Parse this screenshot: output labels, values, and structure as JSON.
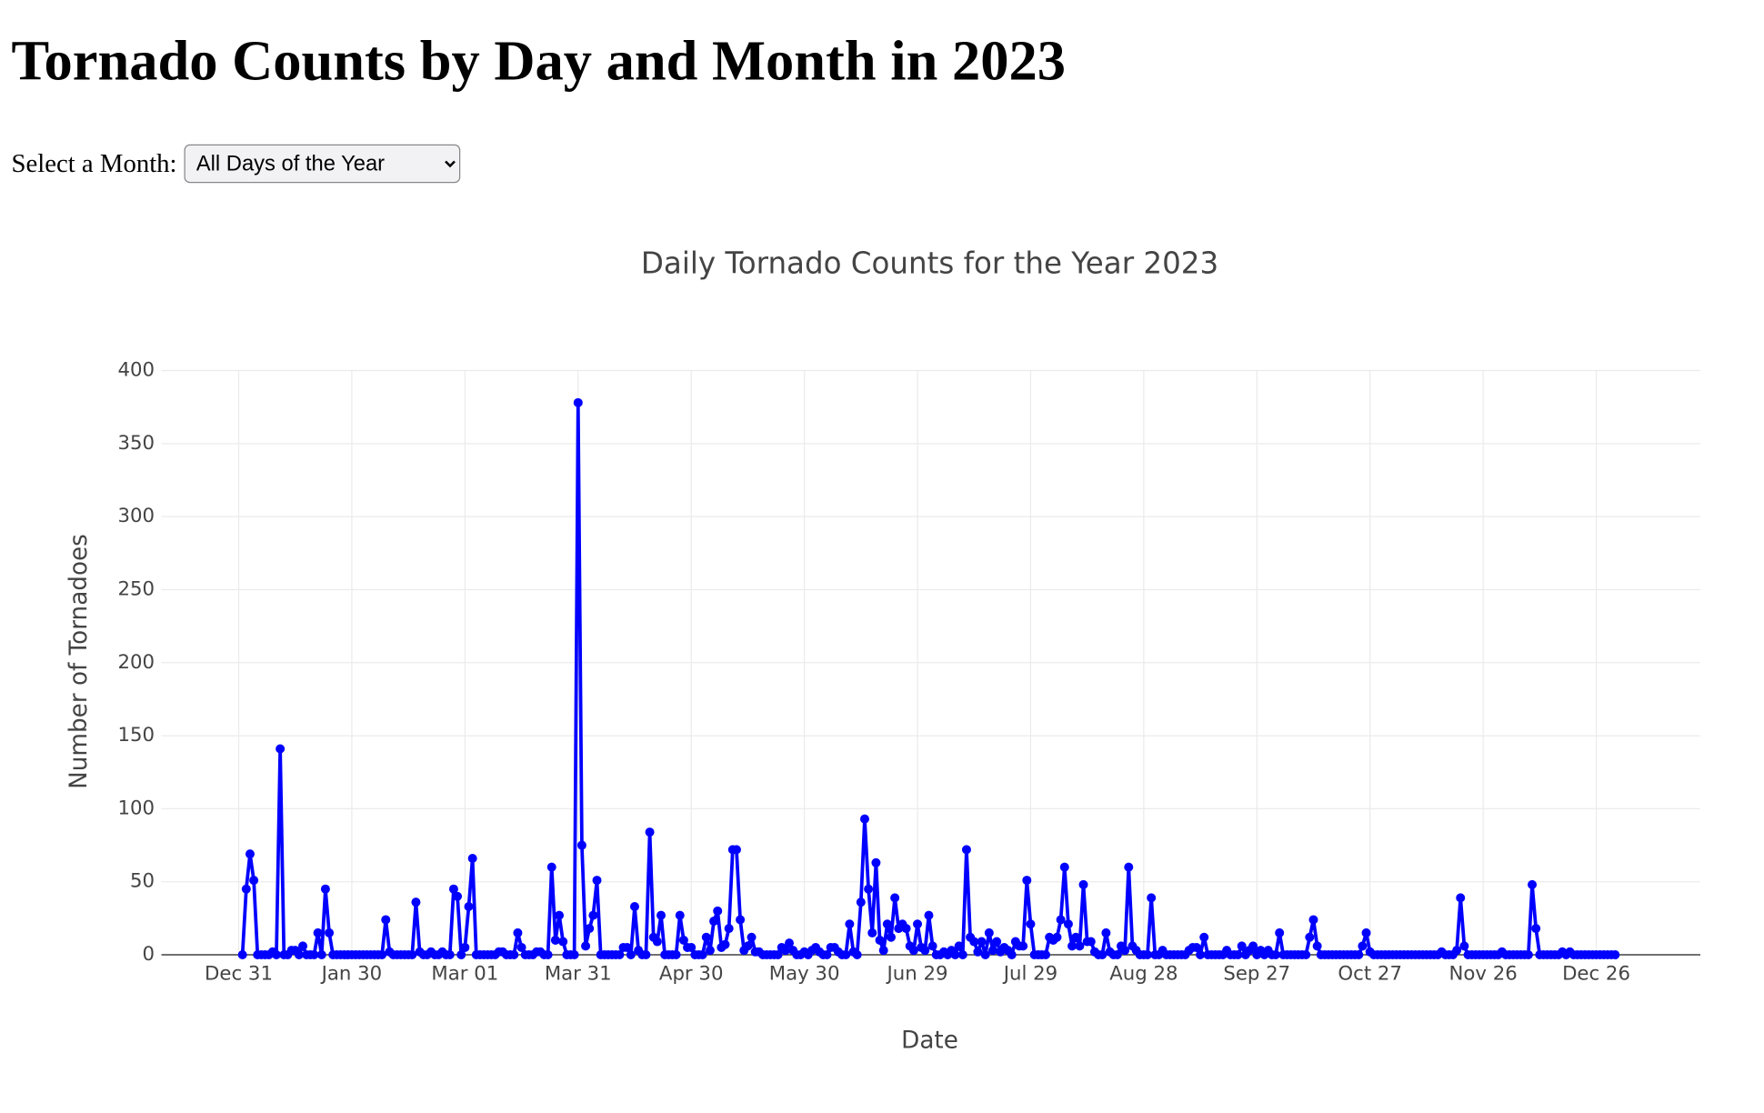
{
  "page": {
    "heading": "Tornado Counts by Day and Month in 2023",
    "select_label": "Select a Month:",
    "select_option": "All Days of the Year"
  },
  "chart_data": {
    "type": "line",
    "title": "Daily Tornado Counts for the Year 2023",
    "xlabel": "Date",
    "ylabel": "Number of Tornadoes",
    "color": "#0000ff",
    "grid": true,
    "markers": true,
    "ylim": [
      0,
      400
    ],
    "yticks": [
      0,
      50,
      100,
      150,
      200,
      250,
      300,
      350,
      400
    ],
    "xticks": [
      "Dec 31",
      "Jan 30",
      "Mar 01",
      "Mar 31",
      "Apr 30",
      "May 30",
      "Jun 29",
      "Jul 29",
      "Aug 28",
      "Sep 27",
      "Oct 27",
      "Nov 26",
      "Dec 26"
    ],
    "x": [
      "Jan 01",
      "Jan 02",
      "Jan 03",
      "Jan 04",
      "Jan 05",
      "Jan 06",
      "Jan 07",
      "Jan 08",
      "Jan 09",
      "Jan 10",
      "Jan 11",
      "Jan 12",
      "Jan 13",
      "Jan 14",
      "Jan 15",
      "Jan 16",
      "Jan 17",
      "Jan 18",
      "Jan 19",
      "Jan 20",
      "Jan 21",
      "Jan 22",
      "Jan 23",
      "Jan 24",
      "Jan 25",
      "Jan 26",
      "Jan 27",
      "Jan 28",
      "Jan 29",
      "Jan 30",
      "Jan 31",
      "Feb 01",
      "Feb 02",
      "Feb 03",
      "Feb 04",
      "Feb 05",
      "Feb 06",
      "Feb 07",
      "Feb 08",
      "Feb 09",
      "Feb 10",
      "Feb 11",
      "Feb 12",
      "Feb 13",
      "Feb 14",
      "Feb 15",
      "Feb 16",
      "Feb 17",
      "Feb 18",
      "Feb 19",
      "Feb 20",
      "Feb 21",
      "Feb 22",
      "Feb 23",
      "Feb 24",
      "Feb 25",
      "Feb 26",
      "Feb 27",
      "Feb 28",
      "Mar 01",
      "Mar 02",
      "Mar 03",
      "Mar 04",
      "Mar 05",
      "Mar 06",
      "Mar 07",
      "Mar 08",
      "Mar 09",
      "Mar 10",
      "Mar 11",
      "Mar 12",
      "Mar 13",
      "Mar 14",
      "Mar 15",
      "Mar 16",
      "Mar 17",
      "Mar 18",
      "Mar 19",
      "Mar 20",
      "Mar 21",
      "Mar 22",
      "Mar 23",
      "Mar 24",
      "Mar 25",
      "Mar 26",
      "Mar 27",
      "Mar 28",
      "Mar 29",
      "Mar 30",
      "Mar 31",
      "Apr 01",
      "Apr 02",
      "Apr 03",
      "Apr 04",
      "Apr 05",
      "Apr 06",
      "Apr 07",
      "Apr 08",
      "Apr 09",
      "Apr 10",
      "Apr 11",
      "Apr 12",
      "Apr 13",
      "Apr 14",
      "Apr 15",
      "Apr 16",
      "Apr 17",
      "Apr 18",
      "Apr 19",
      "Apr 20",
      "Apr 21",
      "Apr 22",
      "Apr 23",
      "Apr 24",
      "Apr 25",
      "Apr 26",
      "Apr 27",
      "Apr 28",
      "Apr 29",
      "Apr 30",
      "May 01",
      "May 02",
      "May 03",
      "May 04",
      "May 05",
      "May 06",
      "May 07",
      "May 08",
      "May 09",
      "May 10",
      "May 11",
      "May 12",
      "May 13",
      "May 14",
      "May 15",
      "May 16",
      "May 17",
      "May 18",
      "May 19",
      "May 20",
      "May 21",
      "May 22",
      "May 23",
      "May 24",
      "May 25",
      "May 26",
      "May 27",
      "May 28",
      "May 29",
      "May 30",
      "May 31",
      "Jun 01",
      "Jun 02",
      "Jun 03",
      "Jun 04",
      "Jun 05",
      "Jun 06",
      "Jun 07",
      "Jun 08",
      "Jun 09",
      "Jun 10",
      "Jun 11",
      "Jun 12",
      "Jun 13",
      "Jun 14",
      "Jun 15",
      "Jun 16",
      "Jun 17",
      "Jun 18",
      "Jun 19",
      "Jun 20",
      "Jun 21",
      "Jun 22",
      "Jun 23",
      "Jun 24",
      "Jun 25",
      "Jun 26",
      "Jun 27",
      "Jun 28",
      "Jun 29",
      "Jun 30",
      "Jul 01",
      "Jul 02",
      "Jul 03",
      "Jul 04",
      "Jul 05",
      "Jul 06",
      "Jul 07",
      "Jul 08",
      "Jul 09",
      "Jul 10",
      "Jul 11",
      "Jul 12",
      "Jul 13",
      "Jul 14",
      "Jul 15",
      "Jul 16",
      "Jul 17",
      "Jul 18",
      "Jul 19",
      "Jul 20",
      "Jul 21",
      "Jul 22",
      "Jul 23",
      "Jul 24",
      "Jul 25",
      "Jul 26",
      "Jul 27",
      "Jul 28",
      "Jul 29",
      "Jul 30",
      "Jul 31",
      "Aug 01",
      "Aug 02",
      "Aug 03",
      "Aug 04",
      "Aug 05",
      "Aug 06",
      "Aug 07",
      "Aug 08",
      "Aug 09",
      "Aug 10",
      "Aug 11",
      "Aug 12",
      "Aug 13",
      "Aug 14",
      "Aug 15",
      "Aug 16",
      "Aug 17",
      "Aug 18",
      "Aug 19",
      "Aug 20",
      "Aug 21",
      "Aug 22",
      "Aug 23",
      "Aug 24",
      "Aug 25",
      "Aug 26",
      "Aug 27",
      "Aug 28",
      "Aug 29",
      "Aug 30",
      "Aug 31",
      "Sep 01",
      "Sep 02",
      "Sep 03",
      "Sep 04",
      "Sep 05",
      "Sep 06",
      "Sep 07",
      "Sep 08",
      "Sep 09",
      "Sep 10",
      "Sep 11",
      "Sep 12",
      "Sep 13",
      "Sep 14",
      "Sep 15",
      "Sep 16",
      "Sep 17",
      "Sep 18",
      "Sep 19",
      "Sep 20",
      "Sep 21",
      "Sep 22",
      "Sep 23",
      "Sep 24",
      "Sep 25",
      "Sep 26",
      "Sep 27",
      "Sep 28",
      "Sep 29",
      "Sep 30",
      "Oct 01",
      "Oct 02",
      "Oct 03",
      "Oct 04",
      "Oct 05",
      "Oct 06",
      "Oct 07",
      "Oct 08",
      "Oct 09",
      "Oct 10",
      "Oct 11",
      "Oct 12",
      "Oct 13",
      "Oct 14",
      "Oct 15",
      "Oct 16",
      "Oct 17",
      "Oct 18",
      "Oct 19",
      "Oct 20",
      "Oct 21",
      "Oct 22",
      "Oct 23",
      "Oct 24",
      "Oct 25",
      "Oct 26",
      "Oct 27",
      "Oct 28",
      "Oct 29",
      "Oct 30",
      "Oct 31",
      "Nov 01",
      "Nov 02",
      "Nov 03",
      "Nov 04",
      "Nov 05",
      "Nov 06",
      "Nov 07",
      "Nov 08",
      "Nov 09",
      "Nov 10",
      "Nov 11",
      "Nov 12",
      "Nov 13",
      "Nov 14",
      "Nov 15",
      "Nov 16",
      "Nov 17",
      "Nov 18",
      "Nov 19",
      "Nov 20",
      "Nov 21",
      "Nov 22",
      "Nov 23",
      "Nov 24",
      "Nov 25",
      "Nov 26",
      "Nov 27",
      "Nov 28",
      "Nov 29",
      "Nov 30",
      "Dec 01",
      "Dec 02",
      "Dec 03",
      "Dec 04",
      "Dec 05",
      "Dec 06",
      "Dec 07",
      "Dec 08",
      "Dec 09",
      "Dec 10",
      "Dec 11",
      "Dec 12",
      "Dec 13",
      "Dec 14",
      "Dec 15",
      "Dec 16",
      "Dec 17",
      "Dec 18",
      "Dec 19",
      "Dec 20",
      "Dec 21",
      "Dec 22",
      "Dec 23",
      "Dec 24",
      "Dec 25",
      "Dec 26",
      "Dec 27",
      "Dec 28",
      "Dec 29",
      "Dec 30",
      "Dec 31"
    ],
    "values": [
      0,
      45,
      69,
      51,
      0,
      0,
      0,
      0,
      2,
      0,
      141,
      0,
      0,
      3,
      3,
      0,
      6,
      0,
      0,
      0,
      15,
      0,
      45,
      15,
      0,
      0,
      0,
      0,
      0,
      0,
      0,
      0,
      0,
      0,
      0,
      0,
      0,
      0,
      24,
      2,
      0,
      0,
      0,
      0,
      0,
      0,
      36,
      2,
      0,
      0,
      2,
      0,
      0,
      2,
      0,
      0,
      45,
      40,
      0,
      5,
      33,
      66,
      0,
      0,
      0,
      0,
      0,
      0,
      2,
      2,
      0,
      0,
      0,
      15,
      5,
      0,
      0,
      0,
      2,
      2,
      0,
      0,
      60,
      10,
      27,
      9,
      0,
      0,
      0,
      378,
      75,
      6,
      18,
      27,
      51,
      0,
      0,
      0,
      0,
      0,
      0,
      5,
      5,
      0,
      33,
      3,
      0,
      0,
      84,
      12,
      9,
      27,
      0,
      0,
      0,
      0,
      27,
      10,
      5,
      5,
      0,
      0,
      0,
      12,
      3,
      23,
      30,
      5,
      7,
      18,
      72,
      72,
      24,
      3,
      6,
      12,
      2,
      2,
      0,
      0,
      0,
      0,
      0,
      5,
      3,
      8,
      3,
      0,
      0,
      2,
      0,
      3,
      5,
      2,
      0,
      0,
      5,
      5,
      2,
      0,
      0,
      21,
      2,
      0,
      36,
      93,
      45,
      15,
      63,
      10,
      3,
      21,
      12,
      39,
      18,
      21,
      18,
      6,
      3,
      21,
      5,
      3,
      27,
      6,
      0,
      0,
      2,
      0,
      3,
      0,
      6,
      0,
      72,
      12,
      9,
      2,
      9,
      0,
      15,
      3,
      9,
      2,
      5,
      3,
      0,
      9,
      6,
      6,
      51,
      21,
      0,
      0,
      0,
      0,
      12,
      10,
      12,
      24,
      60,
      21,
      6,
      12,
      6,
      48,
      9,
      9,
      2,
      0,
      0,
      15,
      2,
      0,
      0,
      6,
      3,
      60,
      6,
      3,
      0,
      0,
      0,
      39,
      0,
      0,
      3,
      0,
      0,
      0,
      0,
      0,
      0,
      3,
      5,
      5,
      0,
      12,
      0,
      0,
      0,
      0,
      0,
      3,
      0,
      0,
      0,
      6,
      0,
      3,
      6,
      0,
      3,
      0,
      3,
      0,
      0,
      15,
      0,
      0,
      0,
      0,
      0,
      0,
      0,
      12,
      24,
      6,
      0,
      0,
      0,
      0,
      0,
      0,
      0,
      0,
      0,
      0,
      0,
      6,
      15,
      2,
      0,
      0,
      0,
      0,
      0,
      0,
      0,
      0,
      0,
      0,
      0,
      0,
      0,
      0,
      0,
      0,
      0,
      0,
      2,
      0,
      0,
      0,
      3,
      39,
      6,
      0,
      0,
      0,
      0,
      0,
      0,
      0,
      0,
      0,
      2,
      0,
      0,
      0,
      0,
      0,
      0,
      0,
      48,
      18,
      0,
      0,
      0,
      0,
      0,
      0,
      2,
      0,
      2,
      0,
      0,
      0,
      0,
      0,
      0,
      0,
      0,
      0,
      0,
      0,
      0
    ]
  }
}
